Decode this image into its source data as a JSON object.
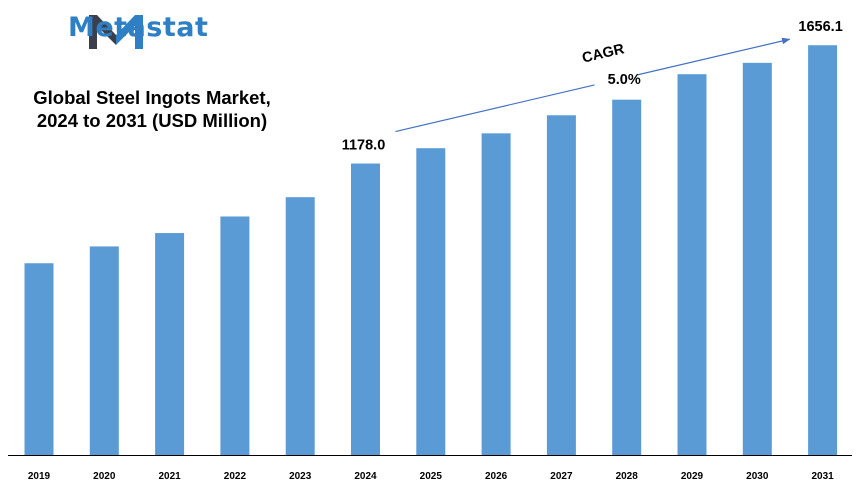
{
  "brand": {
    "name": "Metastat",
    "logo_icon": "metastat-m-logo-icon",
    "logo_colors": [
      "#3b3f4a",
      "#2e7fc4"
    ],
    "text_color": "#2e7fc4"
  },
  "chart_data": {
    "type": "bar",
    "title_lines": [
      "Global Steel Ingots Market,",
      "2024 to 2031 (USD Million)"
    ],
    "categories": [
      "2019",
      "2020",
      "2021",
      "2022",
      "2023",
      "2024",
      "2025",
      "2026",
      "2027",
      "2028",
      "2029",
      "2030",
      "2031"
    ],
    "values": [
      775,
      843,
      897,
      964,
      1042,
      1178.0,
      1240,
      1300,
      1373,
      1436,
      1539,
      1585,
      1656.1
    ],
    "labeled_points": [
      {
        "category": "2024",
        "label": "1178.0"
      },
      {
        "category": "2031",
        "label": "1656.1"
      }
    ],
    "annotation": {
      "lines": [
        "CAGR",
        "5.0%"
      ],
      "arrow_from": "2024",
      "arrow_to": "2031"
    },
    "ylim": [
      0,
      1750
    ],
    "bar_color": "#5b9bd5",
    "grid": false,
    "legend": "none",
    "xlabel": "",
    "ylabel": ""
  }
}
